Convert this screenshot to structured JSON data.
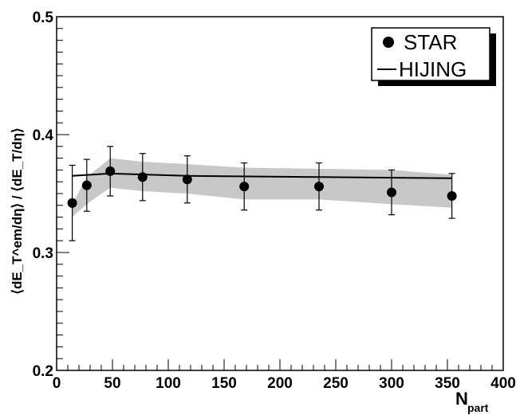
{
  "chart_data": {
    "type": "scatter",
    "xlabel_main": "N",
    "xlabel_sub": "part",
    "ylabel": "⟨dE_T^em/dη⟩ / ⟨dE_T/dη⟩",
    "xlim": [
      0,
      400
    ],
    "ylim": [
      0.2,
      0.5
    ],
    "x_ticks": [
      "0",
      "50",
      "100",
      "150",
      "200",
      "250",
      "300",
      "350",
      "400"
    ],
    "y_ticks": [
      "0.2",
      "0.3",
      "0.4",
      "0.5"
    ],
    "grid": false,
    "legend_position": "top-right",
    "series": [
      {
        "name": "STAR",
        "kind": "points-with-errors",
        "color": "#000000",
        "points": [
          {
            "x": 14,
            "y": 0.342,
            "err": 0.032
          },
          {
            "x": 27,
            "y": 0.357,
            "err": 0.022
          },
          {
            "x": 48,
            "y": 0.369,
            "err": 0.021
          },
          {
            "x": 77,
            "y": 0.364,
            "err": 0.02
          },
          {
            "x": 117,
            "y": 0.362,
            "err": 0.02
          },
          {
            "x": 168,
            "y": 0.356,
            "err": 0.02
          },
          {
            "x": 235,
            "y": 0.356,
            "err": 0.02
          },
          {
            "x": 300,
            "y": 0.351,
            "err": 0.019
          },
          {
            "x": 354,
            "y": 0.348,
            "err": 0.019
          }
        ]
      },
      {
        "name": "HIJING",
        "kind": "line",
        "color": "#000000",
        "points": [
          {
            "x": 14,
            "y": 0.365
          },
          {
            "x": 48,
            "y": 0.367
          },
          {
            "x": 117,
            "y": 0.365
          },
          {
            "x": 235,
            "y": 0.364
          },
          {
            "x": 354,
            "y": 0.363
          }
        ]
      },
      {
        "kind": "band",
        "color": "#c8c8c8",
        "upper": [
          {
            "x": 14,
            "y": 0.341
          },
          {
            "x": 27,
            "y": 0.364
          },
          {
            "x": 48,
            "y": 0.38
          },
          {
            "x": 77,
            "y": 0.377
          },
          {
            "x": 117,
            "y": 0.375
          },
          {
            "x": 168,
            "y": 0.372
          },
          {
            "x": 235,
            "y": 0.371
          },
          {
            "x": 300,
            "y": 0.37
          },
          {
            "x": 354,
            "y": 0.366
          }
        ],
        "lower": [
          {
            "x": 14,
            "y": 0.33
          },
          {
            "x": 27,
            "y": 0.341
          },
          {
            "x": 48,
            "y": 0.355
          },
          {
            "x": 77,
            "y": 0.352
          },
          {
            "x": 117,
            "y": 0.35
          },
          {
            "x": 168,
            "y": 0.345
          },
          {
            "x": 235,
            "y": 0.345
          },
          {
            "x": 300,
            "y": 0.341
          },
          {
            "x": 354,
            "y": 0.338
          }
        ]
      }
    ]
  }
}
